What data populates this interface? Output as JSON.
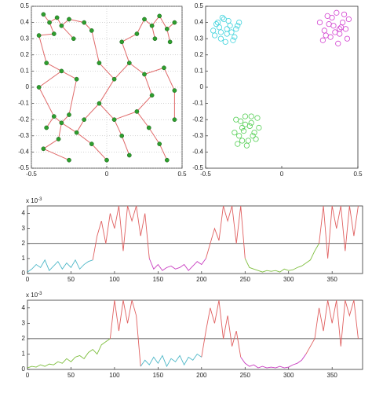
{
  "chart_data": [
    {
      "type": "scatter",
      "xlim": [
        -0.5,
        0.5
      ],
      "ylim": [
        -0.5,
        0.5
      ],
      "xticks": [
        -0.5,
        0,
        0.5
      ],
      "yticks": [
        0.5,
        0.4,
        0.3,
        0.2,
        0.1,
        0,
        -0.1,
        -0.2,
        -0.3,
        -0.4,
        -0.5
      ],
      "grid": true,
      "edge_color": "#e06a6a",
      "series": [
        {
          "color": "#2e9e2e",
          "marker": "filled",
          "x": [
            -0.42,
            -0.38,
            -0.33,
            -0.3,
            -0.25,
            -0.35,
            -0.45,
            -0.22,
            -0.15,
            -0.1,
            0.25,
            0.3,
            0.35,
            0.4,
            0.45,
            0.32,
            0.2,
            0.1,
            0.42,
            -0.4,
            -0.3,
            -0.45,
            -0.2,
            -0.05,
            0.05,
            0.15,
            0.25,
            0.38,
            0.45,
            0.3,
            -0.35,
            -0.3,
            -0.25,
            -0.4,
            -0.2,
            -0.15,
            -0.32,
            -0.42,
            -0.1,
            -0.05,
            0.05,
            0.1,
            0.2,
            0.28,
            0.35,
            0.45,
            0.15,
            0.4,
            -0.25,
            0.0
          ],
          "values": [
            0.45,
            0.4,
            0.43,
            0.38,
            0.42,
            0.33,
            0.32,
            0.3,
            0.4,
            0.35,
            0.42,
            0.38,
            0.44,
            0.36,
            0.4,
            0.3,
            0.33,
            0.28,
            0.28,
            0.15,
            0.1,
            0.0,
            0.05,
            0.15,
            0.05,
            0.15,
            0.08,
            0.12,
            -0.02,
            -0.05,
            -0.18,
            -0.22,
            -0.17,
            -0.25,
            -0.28,
            -0.2,
            -0.32,
            -0.38,
            -0.35,
            -0.1,
            -0.2,
            -0.3,
            -0.15,
            -0.25,
            -0.35,
            -0.2,
            -0.42,
            -0.45,
            -0.45,
            -0.45
          ]
        }
      ],
      "edges": [
        [
          0,
          1
        ],
        [
          1,
          2
        ],
        [
          2,
          3
        ],
        [
          3,
          4
        ],
        [
          1,
          5
        ],
        [
          5,
          6
        ],
        [
          3,
          7
        ],
        [
          4,
          8
        ],
        [
          8,
          9
        ],
        [
          10,
          11
        ],
        [
          11,
          12
        ],
        [
          12,
          13
        ],
        [
          13,
          14
        ],
        [
          11,
          15
        ],
        [
          10,
          16
        ],
        [
          16,
          17
        ],
        [
          13,
          18
        ],
        [
          6,
          19
        ],
        [
          19,
          20
        ],
        [
          20,
          21
        ],
        [
          20,
          22
        ],
        [
          9,
          23
        ],
        [
          23,
          24
        ],
        [
          24,
          25
        ],
        [
          17,
          25
        ],
        [
          25,
          26
        ],
        [
          26,
          27
        ],
        [
          27,
          28
        ],
        [
          26,
          29
        ],
        [
          21,
          30
        ],
        [
          30,
          31
        ],
        [
          31,
          32
        ],
        [
          30,
          33
        ],
        [
          31,
          34
        ],
        [
          34,
          35
        ],
        [
          31,
          36
        ],
        [
          36,
          37
        ],
        [
          34,
          38
        ],
        [
          35,
          39
        ],
        [
          39,
          24
        ],
        [
          39,
          40
        ],
        [
          40,
          41
        ],
        [
          40,
          42
        ],
        [
          42,
          43
        ],
        [
          43,
          44
        ],
        [
          28,
          45
        ],
        [
          29,
          42
        ],
        [
          41,
          46
        ],
        [
          44,
          47
        ],
        [
          37,
          48
        ],
        [
          38,
          49
        ],
        [
          22,
          32
        ]
      ]
    },
    {
      "type": "scatter",
      "xlim": [
        -0.5,
        0.5
      ],
      "ylim": [
        -0.5,
        0.5
      ],
      "xticks": [
        -0.5,
        0,
        0.5
      ],
      "yticks": [
        0.5,
        0.4,
        0.3,
        0.2,
        0.1,
        0,
        -0.1,
        -0.2,
        -0.3,
        -0.4,
        -0.5
      ],
      "grid": false,
      "series": [
        {
          "color": "#3fd3dd",
          "marker": "open",
          "x": [
            -0.45,
            -0.42,
            -0.4,
            -0.38,
            -0.36,
            -0.34,
            -0.32,
            -0.3,
            -0.28,
            -0.44,
            -0.41,
            -0.39,
            -0.37,
            -0.35,
            -0.33,
            -0.31,
            -0.29,
            -0.43,
            -0.36,
            -0.4
          ],
          "values": [
            0.35,
            0.4,
            0.3,
            0.42,
            0.33,
            0.38,
            0.29,
            0.36,
            0.4,
            0.32,
            0.37,
            0.43,
            0.28,
            0.41,
            0.34,
            0.31,
            0.38,
            0.39,
            0.36,
            0.34
          ]
        },
        {
          "color": "#d23fd0",
          "marker": "open",
          "x": [
            0.25,
            0.28,
            0.3,
            0.32,
            0.34,
            0.36,
            0.38,
            0.4,
            0.42,
            0.44,
            0.27,
            0.31,
            0.35,
            0.39,
            0.43,
            0.33,
            0.37,
            0.41,
            0.29,
            0.38
          ],
          "values": [
            0.4,
            0.35,
            0.44,
            0.31,
            0.38,
            0.46,
            0.33,
            0.4,
            0.36,
            0.42,
            0.29,
            0.39,
            0.34,
            0.37,
            0.3,
            0.43,
            0.27,
            0.45,
            0.32,
            0.36
          ]
        },
        {
          "color": "#55cf55",
          "marker": "open",
          "x": [
            -0.3,
            -0.28,
            -0.26,
            -0.24,
            -0.22,
            -0.2,
            -0.18,
            -0.16,
            -0.29,
            -0.25,
            -0.21,
            -0.17,
            -0.27,
            -0.23,
            -0.19,
            -0.31,
            -0.15,
            -0.24,
            -0.2,
            -0.26
          ],
          "values": [
            -0.2,
            -0.3,
            -0.25,
            -0.18,
            -0.33,
            -0.22,
            -0.28,
            -0.19,
            -0.35,
            -0.27,
            -0.24,
            -0.32,
            -0.21,
            -0.36,
            -0.3,
            -0.28,
            -0.25,
            -0.23,
            -0.18,
            -0.33
          ]
        }
      ]
    },
    {
      "type": "line",
      "xlim": [
        0,
        385
      ],
      "ylim": [
        0,
        4.5
      ],
      "xticks": [
        0,
        50,
        100,
        150,
        200,
        250,
        300,
        350
      ],
      "yticks": [
        0,
        1,
        2,
        3,
        4
      ],
      "y_scale_base": "x 10",
      "y_scale_exponent": "-3",
      "hline": 2,
      "series": [
        {
          "color": "#4fb8c8",
          "x": [
            0,
            5,
            10,
            15,
            20,
            25,
            30,
            35,
            40,
            45,
            50,
            55,
            60,
            65,
            70,
            75
          ],
          "values": [
            0.1,
            0.3,
            0.6,
            0.4,
            0.9,
            0.2,
            0.5,
            0.8,
            0.3,
            0.7,
            0.4,
            0.9,
            0.3,
            0.6,
            0.8,
            0.9
          ]
        },
        {
          "color": "#e06060",
          "x": [
            75,
            80,
            85,
            90,
            95,
            100,
            105,
            110,
            115,
            120,
            125,
            130,
            135,
            140
          ],
          "values": [
            0.9,
            2.5,
            3.5,
            2.0,
            4.0,
            3.0,
            4.5,
            1.5,
            4.5,
            3.5,
            4.5,
            2.5,
            4.0,
            1.0
          ]
        },
        {
          "color": "#c83cc0",
          "x": [
            140,
            145,
            150,
            155,
            160,
            165,
            170,
            175,
            180,
            185,
            190,
            195,
            200,
            205
          ],
          "values": [
            1.0,
            0.3,
            0.6,
            0.2,
            0.4,
            0.5,
            0.3,
            0.4,
            0.6,
            0.2,
            0.5,
            0.8,
            0.6,
            1.0
          ]
        },
        {
          "color": "#e06060",
          "x": [
            205,
            210,
            215,
            220,
            225,
            230,
            235,
            240,
            245,
            250
          ],
          "values": [
            1.0,
            2.0,
            3.0,
            2.2,
            4.5,
            3.5,
            4.5,
            2.0,
            4.5,
            1.0
          ]
        },
        {
          "color": "#7fbf3f",
          "x": [
            250,
            255,
            260,
            265,
            270,
            275,
            280,
            285,
            290,
            295,
            300,
            305,
            310,
            315,
            320,
            325,
            330,
            335
          ],
          "values": [
            1.0,
            0.4,
            0.3,
            0.2,
            0.1,
            0.2,
            0.15,
            0.2,
            0.1,
            0.3,
            0.2,
            0.25,
            0.4,
            0.5,
            0.7,
            0.9,
            1.5,
            2.0
          ]
        },
        {
          "color": "#e06060",
          "x": [
            335,
            340,
            345,
            350,
            355,
            360,
            365,
            370,
            375,
            380
          ],
          "values": [
            2.0,
            4.5,
            1.0,
            4.5,
            3.0,
            4.5,
            1.5,
            4.5,
            2.5,
            4.5
          ]
        }
      ]
    },
    {
      "type": "line",
      "xlim": [
        0,
        385
      ],
      "ylim": [
        0,
        4.5
      ],
      "xticks": [
        0,
        50,
        100,
        150,
        200,
        250,
        300,
        350
      ],
      "yticks": [
        0,
        1,
        2,
        3,
        4
      ],
      "y_scale_base": "x 10",
      "y_scale_exponent": "-3",
      "hline": 2,
      "series": [
        {
          "color": "#7fbf3f",
          "x": [
            0,
            5,
            10,
            15,
            20,
            25,
            30,
            35,
            40,
            45,
            50,
            55,
            60,
            65,
            70,
            75,
            80,
            85,
            90,
            95
          ],
          "values": [
            0.1,
            0.2,
            0.15,
            0.3,
            0.2,
            0.35,
            0.3,
            0.5,
            0.4,
            0.7,
            0.5,
            0.8,
            0.9,
            0.7,
            1.1,
            1.3,
            1.0,
            1.6,
            1.8,
            2.0
          ]
        },
        {
          "color": "#e06060",
          "x": [
            95,
            100,
            105,
            110,
            115,
            120,
            125,
            130
          ],
          "values": [
            2.0,
            4.5,
            2.5,
            4.5,
            3.0,
            4.5,
            3.5,
            0.2
          ]
        },
        {
          "color": "#4fb8c8",
          "x": [
            130,
            135,
            140,
            145,
            150,
            155,
            160,
            165,
            170,
            175,
            180,
            185,
            190,
            195,
            200
          ],
          "values": [
            0.2,
            0.6,
            0.3,
            0.8,
            0.4,
            0.9,
            0.2,
            0.7,
            0.5,
            0.9,
            0.3,
            0.8,
            0.6,
            1.0,
            0.8
          ]
        },
        {
          "color": "#e06060",
          "x": [
            200,
            205,
            210,
            215,
            220,
            225,
            230,
            235,
            240,
            245
          ],
          "values": [
            0.8,
            2.5,
            4.0,
            3.0,
            4.5,
            2.0,
            3.5,
            1.5,
            2.5,
            0.8
          ]
        },
        {
          "color": "#c83cc0",
          "x": [
            245,
            250,
            255,
            260,
            265,
            270,
            275,
            280,
            285,
            290,
            295,
            300,
            305,
            310,
            315,
            320
          ],
          "values": [
            0.8,
            0.4,
            0.2,
            0.3,
            0.1,
            0.2,
            0.1,
            0.15,
            0.1,
            0.2,
            0.1,
            0.15,
            0.3,
            0.4,
            0.6,
            1.0
          ]
        },
        {
          "color": "#e06060",
          "x": [
            320,
            325,
            330,
            335,
            340,
            345,
            350,
            355,
            360,
            365,
            370,
            375,
            380
          ],
          "values": [
            1.0,
            1.5,
            2.0,
            4.0,
            2.5,
            4.5,
            3.0,
            4.5,
            1.5,
            4.5,
            3.5,
            4.5,
            2.0
          ]
        }
      ]
    }
  ]
}
